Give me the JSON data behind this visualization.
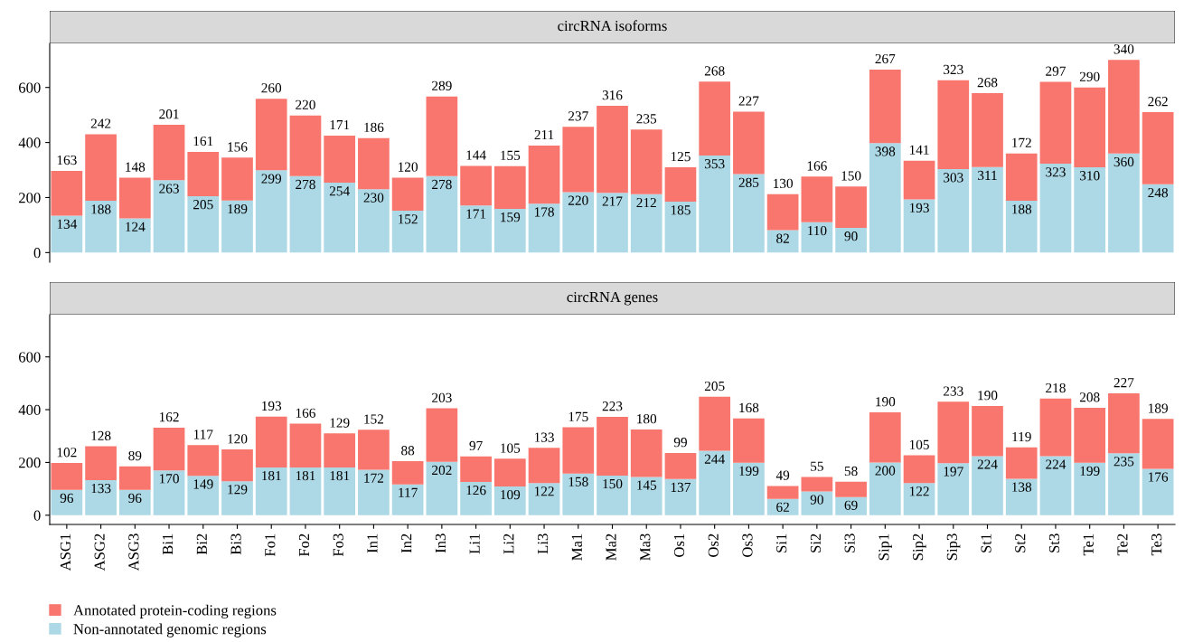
{
  "chart_data": [
    {
      "type": "bar",
      "title": "circRNA isoforms",
      "stacked": true,
      "data_labels": true,
      "tick_labels": "y",
      "grid": false,
      "ylim": [
        -35,
        760
      ],
      "yticks": [
        0,
        200,
        400,
        600
      ],
      "categories": [
        null,
        null,
        null,
        null,
        null,
        null,
        null,
        null,
        null,
        null,
        null,
        null,
        null,
        null,
        null,
        null,
        null,
        null,
        null,
        null,
        null,
        null,
        null,
        null,
        null,
        null,
        null,
        null,
        null,
        null,
        null,
        null,
        null
      ],
      "series": [
        {
          "color": "#add8e6",
          "values": [
            134,
            188,
            124,
            263,
            205,
            189,
            299,
            278,
            254,
            230,
            152,
            278,
            171,
            159,
            178,
            220,
            217,
            212,
            185,
            353,
            285,
            82,
            110,
            90,
            398,
            193,
            303,
            311,
            188,
            323,
            310,
            360,
            248
          ]
        },
        {
          "color": "#f8766d",
          "values": [
            163,
            242,
            148,
            201,
            161,
            156,
            260,
            220,
            171,
            186,
            120,
            289,
            144,
            155,
            211,
            237,
            316,
            235,
            125,
            268,
            227,
            130,
            166,
            150,
            267,
            141,
            323,
            268,
            172,
            297,
            290,
            340,
            262
          ]
        }
      ]
    },
    {
      "type": "bar",
      "title": "circRNA genes",
      "stacked": true,
      "data_labels": true,
      "legend": "bottom",
      "grid": false,
      "ylim": [
        -35,
        760
      ],
      "yticks": [
        0,
        200,
        400,
        600
      ],
      "categories": [
        "ASG1",
        "ASG2",
        "ASG3",
        "Bi1",
        "Bi2",
        "Bi3",
        "Fo1",
        "Fo2",
        "Fo3",
        "In1",
        "In2",
        "In3",
        "Li1",
        "Li2",
        "Li3",
        "Ma1",
        "Ma2",
        "Ma3",
        "Os1",
        "Os2",
        "Os3",
        "Si1",
        "Si2",
        "Si3",
        "Sip1",
        "Sip2",
        "Sip3",
        "St1",
        "St2",
        "St3",
        "Te1",
        "Te2",
        "Te3"
      ],
      "series": [
        {
          "name": "Non-annotated genomic regions",
          "color": "#add8e6",
          "values": [
            96,
            133,
            96,
            170,
            149,
            129,
            181,
            181,
            181,
            172,
            117,
            202,
            126,
            109,
            122,
            158,
            150,
            145,
            137,
            244,
            199,
            62,
            90,
            69,
            200,
            122,
            197,
            224,
            138,
            224,
            199,
            235,
            176
          ]
        },
        {
          "name": "Annotated protein-coding regions",
          "color": "#f8766d",
          "values": [
            102,
            128,
            89,
            162,
            117,
            120,
            193,
            166,
            129,
            152,
            88,
            203,
            97,
            105,
            133,
            175,
            223,
            180,
            99,
            205,
            168,
            49,
            55,
            58,
            190,
            105,
            233,
            190,
            119,
            218,
            208,
            227,
            189
          ]
        }
      ]
    }
  ]
}
